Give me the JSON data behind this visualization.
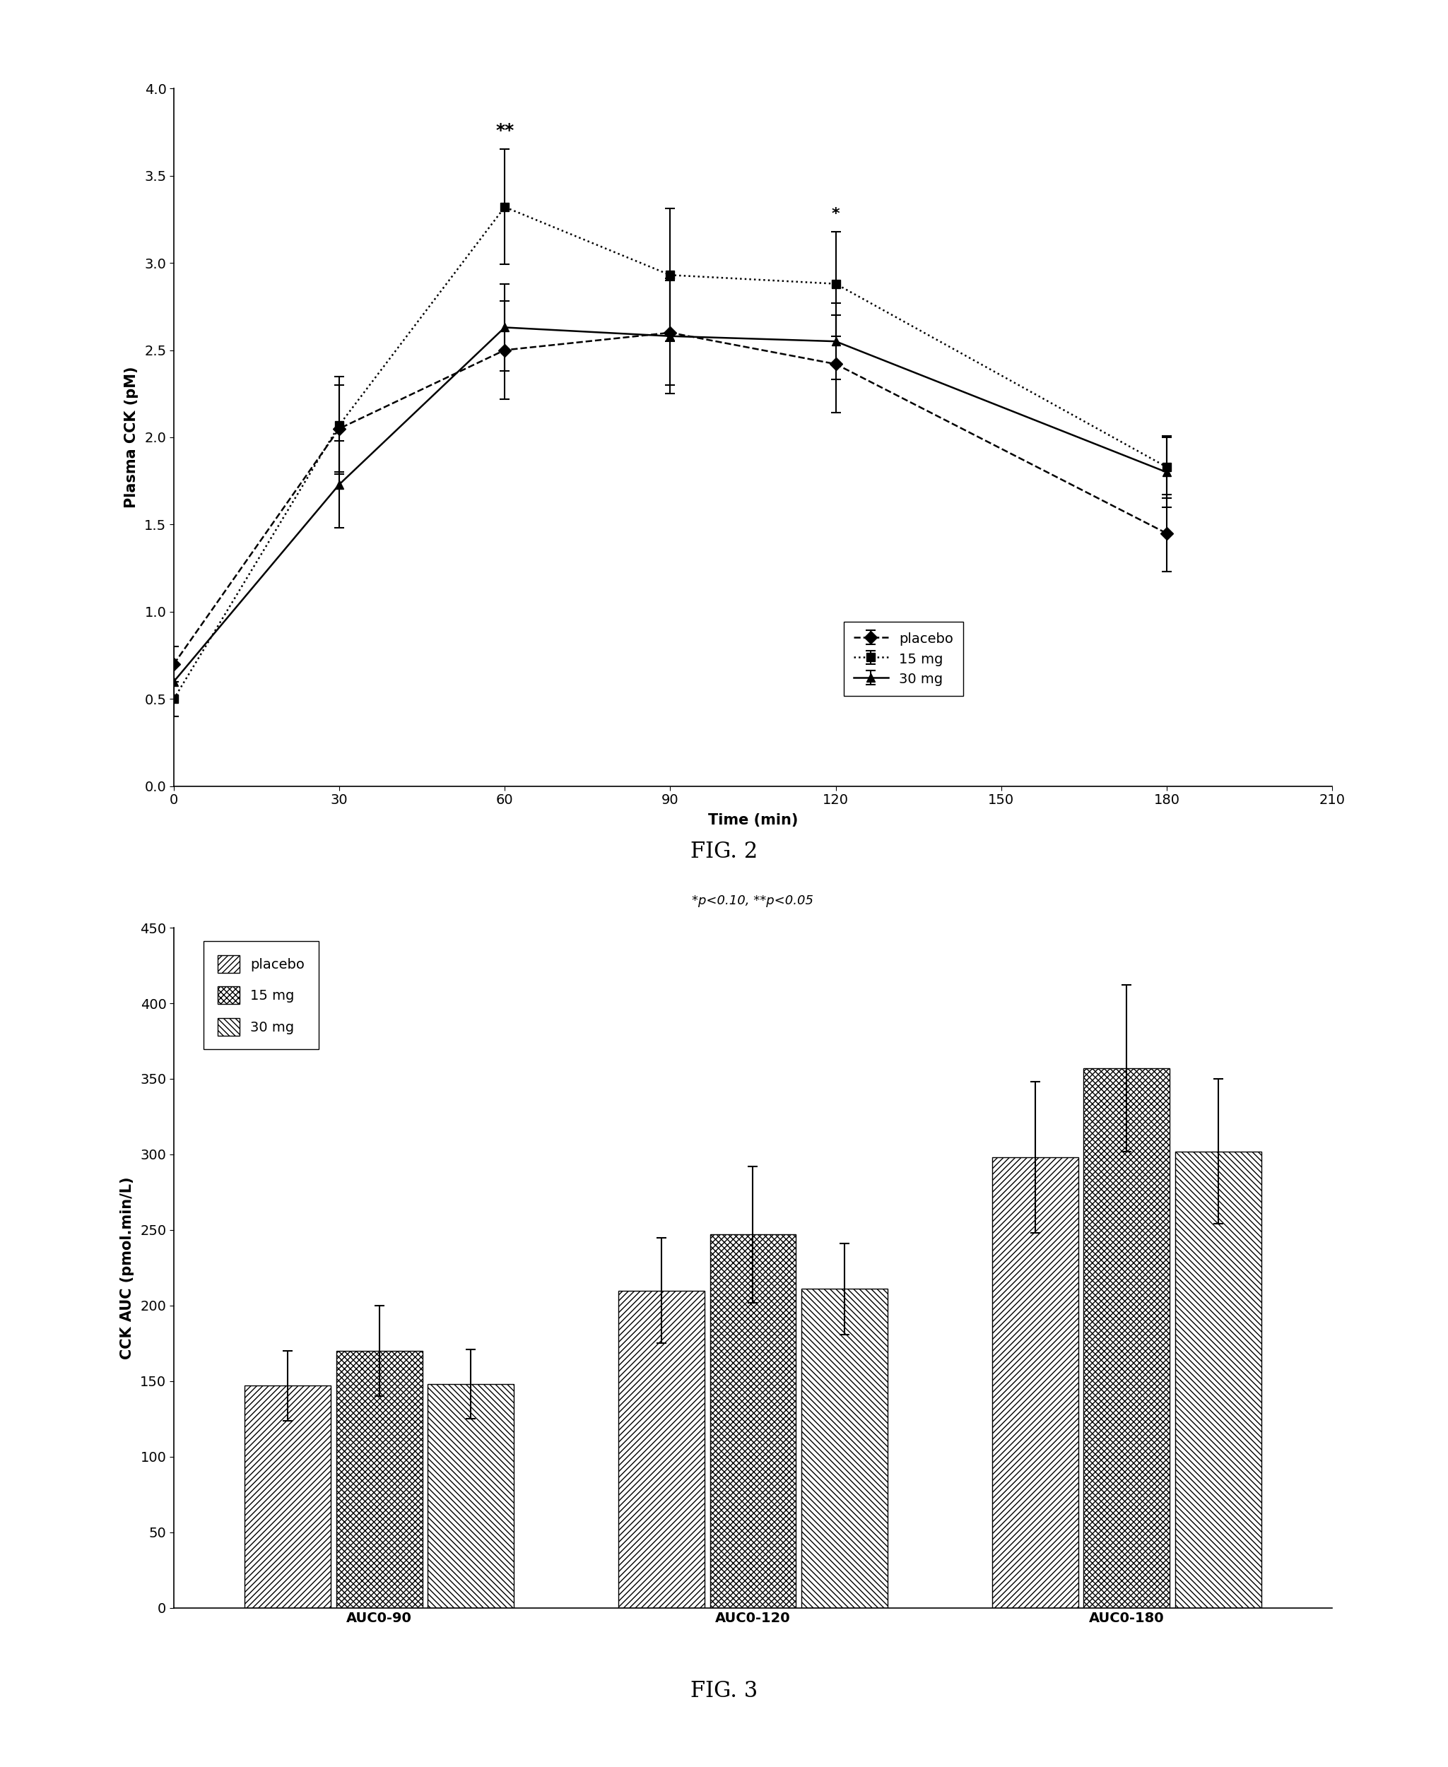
{
  "fig2": {
    "title": "FIG. 2",
    "xlabel": "Time (min)",
    "ylabel": "Plasma CCK (pM)",
    "annotation": "*p<0.10, **p<0.05",
    "xlim": [
      0,
      210
    ],
    "ylim": [
      0,
      4
    ],
    "xticks": [
      0,
      30,
      60,
      90,
      120,
      150,
      180,
      210
    ],
    "yticks": [
      0,
      0.5,
      1.0,
      1.5,
      2.0,
      2.5,
      3.0,
      3.5,
      4.0
    ],
    "placebo": {
      "x": [
        0,
        30,
        60,
        90,
        120,
        180
      ],
      "y": [
        0.7,
        2.05,
        2.5,
        2.6,
        2.42,
        1.45
      ],
      "yerr": [
        0.1,
        0.25,
        0.28,
        0.3,
        0.28,
        0.22
      ],
      "label": "placebo",
      "linestyle": "--",
      "marker": "D",
      "color": "black"
    },
    "mg15": {
      "x": [
        0,
        30,
        60,
        90,
        120,
        180
      ],
      "y": [
        0.5,
        2.07,
        3.32,
        2.93,
        2.88,
        1.83
      ],
      "yerr": [
        0.1,
        0.28,
        0.33,
        0.38,
        0.3,
        0.18
      ],
      "label": "15 mg",
      "linestyle": ":",
      "marker": "s",
      "color": "black"
    },
    "mg30": {
      "x": [
        0,
        30,
        60,
        90,
        120,
        180
      ],
      "y": [
        0.6,
        1.73,
        2.63,
        2.58,
        2.55,
        1.8
      ],
      "yerr": [
        0.1,
        0.25,
        0.25,
        0.33,
        0.22,
        0.2
      ],
      "label": "30 mg",
      "linestyle": "-",
      "marker": "^",
      "color": "black"
    },
    "star60_text": "**",
    "star120_text": "*",
    "star60_x": 60,
    "star120_x": 120
  },
  "fig3": {
    "title": "FIG. 3",
    "ylabel": "CCK AUC (pmol.min/L)",
    "categories": [
      "AUC0-90",
      "AUC0-120",
      "AUC0-180"
    ],
    "ylim": [
      0,
      450
    ],
    "yticks": [
      0,
      50,
      100,
      150,
      200,
      250,
      300,
      350,
      400,
      450
    ],
    "placebo": {
      "values": [
        147,
        210,
        298
      ],
      "yerr": [
        23,
        35,
        50
      ],
      "label": "placebo",
      "hatch": "////"
    },
    "mg15": {
      "values": [
        170,
        247,
        357
      ],
      "yerr": [
        30,
        45,
        55
      ],
      "label": "15 mg",
      "hatch": "xxxx"
    },
    "mg30": {
      "values": [
        148,
        211,
        302
      ],
      "yerr": [
        23,
        30,
        48
      ],
      "label": "30 mg",
      "hatch": "\\\\\\\\"
    }
  }
}
